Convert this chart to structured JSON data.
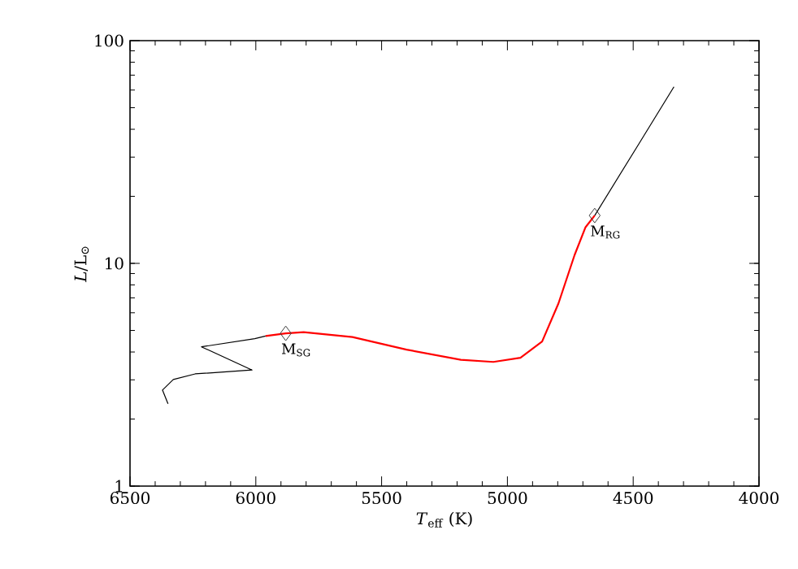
{
  "chart_data": {
    "type": "line",
    "xlabel": "*T*$_{eff}$ (K)",
    "ylabel": "*L*/L$_{⊙}$",
    "log": "y",
    "xlim": [
      6500,
      4000
    ],
    "ylim": [
      1,
      100
    ],
    "xticks": [
      6500,
      6000,
      5500,
      5000,
      4500,
      4000
    ],
    "yticks": [
      1,
      10,
      100
    ],
    "grid": false,
    "legend": false,
    "series": [
      {
        "color": "#000000",
        "x": [
          6349,
          6371,
          6328,
          6241,
          6015,
          6216,
          6004,
          5961
        ],
        "values": [
          2.34,
          2.7,
          3.01,
          3.19,
          3.32,
          4.22,
          4.59,
          4.72
        ]
      },
      {
        "color": "#ff0000",
        "x": [
          5961,
          5881,
          5810,
          5616,
          5401,
          5185,
          5056,
          4948,
          4862,
          4797,
          4733,
          4690,
          4653
        ],
        "values": [
          4.72,
          4.85,
          4.91,
          4.67,
          4.1,
          3.69,
          3.61,
          3.77,
          4.46,
          6.61,
          10.9,
          14.5,
          16.4
        ]
      },
      {
        "color": "#000000",
        "x": [
          4653,
          4474,
          4338
        ],
        "values": [
          16.4,
          34.9,
          62.1
        ]
      },
      {
        "type": "scatter",
        "color": "#404040",
        "marker": "diamond",
        "x": [
          5881,
          4653
        ],
        "values": [
          4.85,
          16.4
        ]
      }
    ],
    "annotations": [
      {
        "text": "M$_{SG}$",
        "x": 5881,
        "y": 4.85
      },
      {
        "text": "M$_{RG}$",
        "x": 4653,
        "y": 16.4
      }
    ]
  }
}
